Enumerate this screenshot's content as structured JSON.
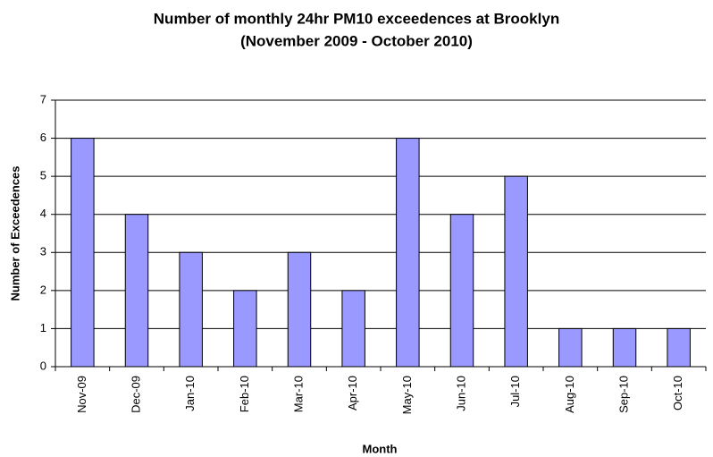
{
  "chart_data": {
    "type": "bar",
    "title": "Number of monthly 24hr PM10 exceedences at Brooklyn",
    "subtitle": "(November 2009 - October 2010)",
    "x_label": "Month",
    "y_label": "Number of Exceedences",
    "categories": [
      "Nov-09",
      "Dec-09",
      "Jan-10",
      "Feb-10",
      "Mar-10",
      "Apr-10",
      "May-10",
      "Jun-10",
      "Jul-10",
      "Aug-10",
      "Sep-10",
      "Oct-10"
    ],
    "values": [
      6,
      4,
      3,
      2,
      3,
      2,
      6,
      4,
      5,
      1,
      1,
      1
    ],
    "color": "#9999ff",
    "ylim": [
      0,
      7
    ],
    "yticks": [
      0,
      1,
      2,
      3,
      4,
      5,
      6,
      7
    ],
    "grid": true
  }
}
